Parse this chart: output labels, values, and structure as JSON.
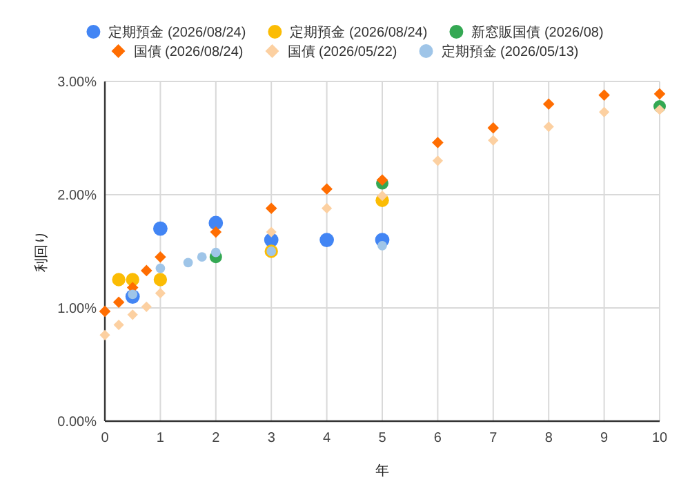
{
  "chart_data": {
    "type": "scatter",
    "xlabel": "年",
    "ylabel": "利回り",
    "xlim": [
      0,
      10
    ],
    "ylim": [
      0,
      3
    ],
    "xticks": [
      0,
      1,
      2,
      3,
      4,
      5,
      6,
      7,
      8,
      9,
      10
    ],
    "yticks": [
      {
        "value": 0,
        "label": "0.00%"
      },
      {
        "value": 1,
        "label": "1.00%"
      },
      {
        "value": 2,
        "label": "2.00%"
      },
      {
        "value": 3,
        "label": "3.00%"
      }
    ],
    "grid": true,
    "legend": "top",
    "series": [
      {
        "name": "定期預金 (2026/08/24)",
        "color": "#4285f4",
        "marker": "circle",
        "x": [
          0.5,
          1,
          2,
          3,
          4,
          5
        ],
        "values": [
          1.1,
          1.7,
          1.75,
          1.6,
          1.6,
          1.6
        ]
      },
      {
        "name": "定期預金 (2026/08/24)",
        "color": "#fbbc04",
        "marker": "circle",
        "x": [
          0.25,
          0.5,
          1,
          3,
          5
        ],
        "values": [
          1.25,
          1.25,
          1.25,
          1.5,
          1.95
        ]
      },
      {
        "name": "新窓販国債 (2026/08)",
        "color": "#34a853",
        "marker": "circle",
        "x": [
          2,
          5,
          10
        ],
        "values": [
          1.45,
          2.1,
          2.78
        ]
      },
      {
        "name": "国債 (2026/08/24)",
        "color": "#ff6d01",
        "marker": "diamond",
        "x": [
          0,
          0.25,
          0.5,
          0.75,
          1,
          2,
          3,
          4,
          5,
          6,
          7,
          8,
          9,
          10
        ],
        "values": [
          0.97,
          1.05,
          1.18,
          1.33,
          1.45,
          1.67,
          1.88,
          2.05,
          2.13,
          2.46,
          2.59,
          2.8,
          2.88,
          2.89
        ]
      },
      {
        "name": "国債 (2026/05/22)",
        "color": "#fcd0a1",
        "marker": "diamond",
        "x": [
          0,
          0.25,
          0.5,
          0.75,
          1,
          3,
          4,
          5,
          6,
          7,
          8,
          9,
          10
        ],
        "values": [
          0.76,
          0.85,
          0.94,
          1.01,
          1.13,
          1.67,
          1.88,
          1.99,
          2.3,
          2.48,
          2.6,
          2.73,
          2.75
        ]
      },
      {
        "name": "定期預金 (2026/05/13)",
        "color": "#9fc5e8",
        "marker": "circle",
        "x": [
          0.5,
          1,
          1.5,
          1.75,
          2,
          3,
          5
        ],
        "values": [
          1.12,
          1.35,
          1.4,
          1.45,
          1.49,
          1.5,
          1.55
        ]
      }
    ]
  }
}
